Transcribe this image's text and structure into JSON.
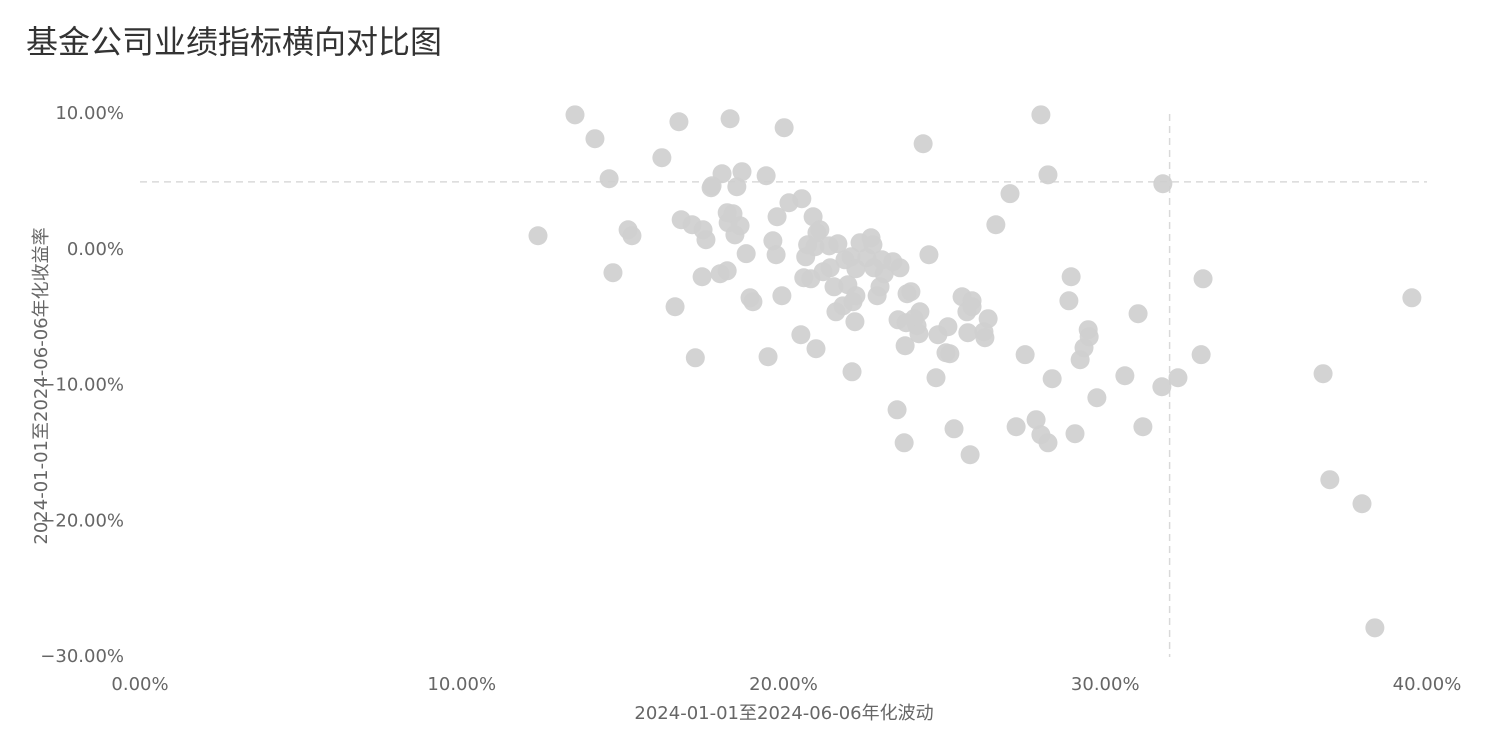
{
  "chart_data": {
    "type": "scatter",
    "title": "基金公司业绩指标横向对比图",
    "x_label": "2024-01-01至2024-06-06年化波动",
    "y_label": "2024-01-01至2024-06-06年化收益率",
    "color": "#cfcfcf",
    "xlim": [
      0,
      40
    ],
    "ylim": [
      -30,
      10
    ],
    "xticks": [
      {
        "value": 0,
        "label": "0.00%"
      },
      {
        "value": 10,
        "label": "10.00%"
      },
      {
        "value": 20,
        "label": "20.00%"
      },
      {
        "value": 30,
        "label": "30.00%"
      },
      {
        "value": 40,
        "label": "40.00%"
      }
    ],
    "yticks": [
      {
        "value": 10,
        "label": "10.00%"
      },
      {
        "value": 0,
        "label": "0.00%"
      },
      {
        "value": -10,
        "label": "−10.00%"
      },
      {
        "value": -20,
        "label": "−20.00%"
      },
      {
        "value": -30,
        "label": "−30.00%"
      }
    ],
    "hline": 5,
    "vline": 32,
    "x": [
      12.37,
      13.52,
      14.14,
      14.58,
      14.7,
      15.17,
      15.29,
      16.22,
      16.63,
      16.75,
      16.82,
      17.16,
      17.26,
      17.47,
      17.5,
      17.59,
      17.75,
      17.78,
      18.03,
      18.09,
      18.25,
      18.25,
      18.28,
      18.34,
      18.43,
      18.49,
      18.55,
      18.65,
      18.71,
      18.84,
      18.96,
      19.05,
      19.46,
      19.52,
      19.67,
      19.77,
      19.8,
      19.95,
      20.02,
      20.17,
      20.54,
      20.57,
      20.63,
      20.69,
      20.75,
      20.85,
      20.92,
      20.98,
      21.01,
      21.04,
      21.13,
      21.23,
      21.42,
      21.45,
      21.57,
      21.63,
      21.69,
      21.85,
      21.91,
      22.0,
      22.1,
      22.13,
      22.16,
      22.22,
      22.25,
      22.25,
      22.38,
      22.59,
      22.72,
      22.78,
      22.81,
      22.91,
      23.0,
      23.06,
      23.13,
      23.4,
      23.53,
      23.56,
      23.62,
      23.75,
      23.78,
      23.81,
      23.84,
      23.96,
      24.06,
      24.15,
      24.21,
      24.24,
      24.34,
      24.52,
      24.74,
      24.8,
      25.05,
      25.11,
      25.17,
      25.3,
      25.55,
      25.7,
      25.73,
      25.8,
      25.86,
      25.86,
      26.23,
      26.26,
      26.36,
      26.6,
      27.04,
      27.23,
      27.51,
      27.85,
      28.0,
      28.0,
      28.22,
      28.22,
      28.35,
      28.87,
      28.94,
      29.06,
      29.22,
      29.34,
      29.47,
      29.5,
      29.74,
      30.61,
      31.02,
      31.17,
      31.76,
      31.79,
      32.26,
      32.98,
      33.04,
      36.77,
      36.98,
      37.98,
      38.38,
      39.53
    ],
    "values": [
      1.03,
      9.94,
      8.18,
      5.23,
      -1.69,
      1.47,
      1.03,
      6.78,
      -4.2,
      9.43,
      2.21,
      1.84,
      -7.96,
      -1.99,
      1.47,
      0.74,
      4.57,
      4.71,
      -1.77,
      5.6,
      -1.55,
      2.73,
      1.99,
      9.65,
      2.65,
      1.1,
      4.64,
      1.77,
      5.75,
      -0.29,
      -3.54,
      -3.83,
      5.45,
      -7.88,
      0.66,
      -0.37,
      2.43,
      -3.39,
      8.99,
      3.46,
      -6.26,
      3.76,
      -2.06,
      -0.52,
      0.37,
      -2.14,
      2.43,
      0.22,
      -7.29,
      1.25,
      1.47,
      -1.62,
      0.29,
      -1.33,
      -2.73,
      -4.57,
      0.44,
      -4.13,
      -0.74,
      -2.58,
      -0.52,
      -8.99,
      -3.83,
      -5.3,
      -3.39,
      -1.4,
      0.52,
      -0.59,
      0.88,
      0.37,
      -1.33,
      -3.39,
      -2.73,
      -0.74,
      -1.77,
      -0.88,
      -11.79,
      -5.16,
      -1.33,
      -14.22,
      -7.07,
      -5.38,
      -3.24,
      -3.09,
      -5.08,
      -5.6,
      -6.19,
      -4.57,
      7.81,
      -0.37,
      -9.43,
      -6.26,
      -7.59,
      -5.67,
      -7.66,
      -13.19,
      -3.46,
      -4.57,
      -6.11,
      -15.1,
      -3.76,
      -4.2,
      -6.04,
      -6.48,
      -5.08,
      1.84,
      4.13,
      -13.04,
      -7.73,
      -12.52,
      9.94,
      -13.63,
      5.52,
      -14.22,
      -9.5,
      -3.76,
      -1.99,
      -13.55,
      -8.1,
      -7.22,
      -5.89,
      -6.41,
      -10.9,
      -9.28,
      -4.71,
      -13.04,
      -10.09,
      4.86,
      -9.43,
      -7.73,
      -2.14,
      -9.13,
      -16.94,
      -18.71,
      -27.85,
      -3.54
    ]
  }
}
